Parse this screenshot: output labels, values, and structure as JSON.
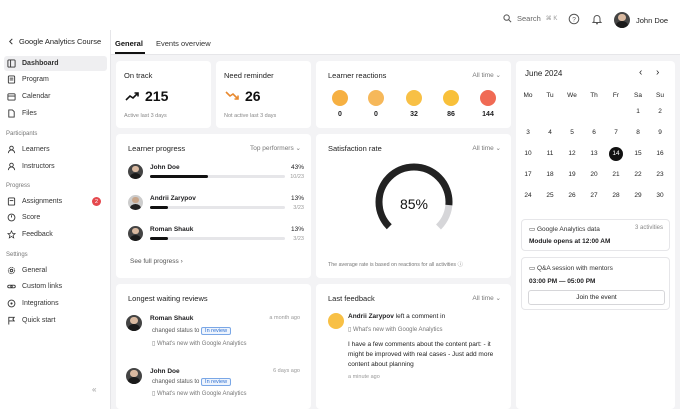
{
  "topbar": {
    "search": "Search",
    "search_shortcut": "⌘ K",
    "user_name": "John Doe"
  },
  "sidebar": {
    "back_label": "Google Analytics Course",
    "items": [
      {
        "label": "Dashboard",
        "icon": "dashboard-icon"
      },
      {
        "label": "Program",
        "icon": "program-icon"
      },
      {
        "label": "Calendar",
        "icon": "calendar-icon"
      },
      {
        "label": "Files",
        "icon": "files-icon"
      }
    ],
    "participants_title": "Participants",
    "participants": [
      {
        "label": "Learners"
      },
      {
        "label": "Instructors"
      }
    ],
    "progress_title": "Progress",
    "progress": [
      {
        "label": "Assignments",
        "badge": "2"
      },
      {
        "label": "Score"
      },
      {
        "label": "Feedback"
      }
    ],
    "settings_title": "Settings",
    "settings": [
      {
        "label": "General"
      },
      {
        "label": "Custom links"
      },
      {
        "label": "Integrations"
      },
      {
        "label": "Quick start"
      }
    ],
    "collapse": "«"
  },
  "tabs": [
    {
      "label": "General"
    },
    {
      "label": "Events overview"
    }
  ],
  "on_track": {
    "title": "On track",
    "value": "215",
    "sub": "Active last 3 days"
  },
  "need_reminder": {
    "title": "Need reminder",
    "value": "26",
    "sub": "Not active last 3 days"
  },
  "reactions": {
    "title": "Learner reactions",
    "filter": "All time",
    "counts": [
      "0",
      "0",
      "32",
      "86",
      "144"
    ]
  },
  "learner_progress": {
    "title": "Learner progress",
    "filter": "Top performers",
    "rows": [
      {
        "name": "John Doe",
        "pct": "43%",
        "count": "10/23",
        "fill": 0.43
      },
      {
        "name": "Andrii Zarypov",
        "pct": "13%",
        "count": "3/23",
        "fill": 0.13
      },
      {
        "name": "Roman Shauk",
        "pct": "13%",
        "count": "3/23",
        "fill": 0.13
      }
    ],
    "see_full": "See full progress"
  },
  "satisfaction": {
    "title": "Satisfaction rate",
    "filter": "All time",
    "value": "85%",
    "fill": 0.85,
    "note": "The average rate is based on reactions for all activities"
  },
  "calendar": {
    "month": "June 2024",
    "weekdays": [
      "Mo",
      "Tu",
      "We",
      "Th",
      "Fr",
      "Sa",
      "Su"
    ],
    "weeks": [
      [
        "",
        "",
        "",
        "",
        "",
        "1",
        "2"
      ],
      [
        "3",
        "4",
        "5",
        "6",
        "7",
        "8",
        "9"
      ],
      [
        "10",
        "11",
        "12",
        "13",
        "14",
        "15",
        "16"
      ],
      [
        "17",
        "18",
        "19",
        "20",
        "21",
        "22",
        "23"
      ],
      [
        "24",
        "25",
        "26",
        "27",
        "28",
        "29",
        "30"
      ]
    ],
    "selected": "14"
  },
  "events": [
    {
      "title": "Google Analytics data",
      "meta": "3 activities",
      "detail": "Module opens at 12:00 AM"
    },
    {
      "title": "Q&A session with mentors",
      "detail": "03:00 PM — 05:00 PM",
      "button": "Join the event"
    }
  ],
  "waiting_reviews": {
    "title": "Longest waiting reviews",
    "items": [
      {
        "name": "Roman Shauk",
        "time": "a month ago",
        "action": "changed status to",
        "status": "In review",
        "link": "What's new with Google Analytics"
      },
      {
        "name": "John Doe",
        "time": "6 days ago",
        "action": "changed status to",
        "status": "In review",
        "link": "What's new with Google Analytics"
      }
    ]
  },
  "last_feedback": {
    "title": "Last feedback",
    "filter": "All time",
    "name": "Andrii Zarypov",
    "action": "left a comment in",
    "link": "What's new with Google Analytics",
    "comment": "I have a few comments about the content part: - it might be improved with real cases - Just add more content about planning",
    "time": "a minute ago"
  }
}
